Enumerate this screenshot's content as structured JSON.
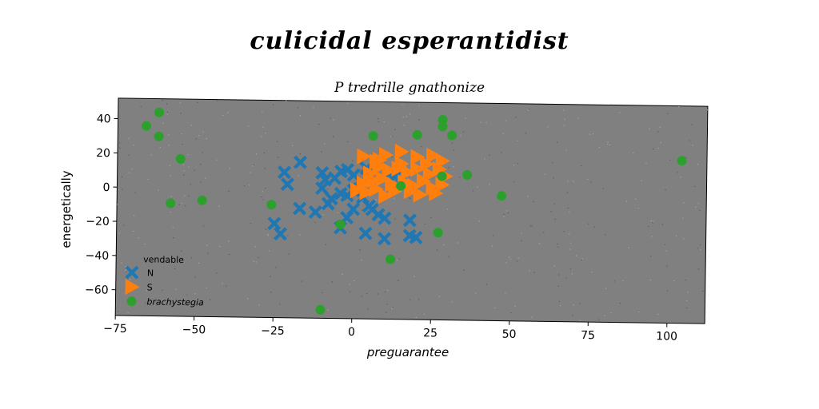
{
  "chart_data": {
    "type": "scatter",
    "title": "culicidal esperantidist",
    "subtitle": "P tredrille gnathonize",
    "xlabel": "preguarantee",
    "ylabel": "energetically",
    "xlim": [
      -75,
      112
    ],
    "ylim": [
      -75,
      52
    ],
    "xticks": [
      -75,
      -50,
      -25,
      0,
      25,
      50,
      75,
      100
    ],
    "yticks": [
      40,
      20,
      0,
      -20,
      -40,
      -60
    ],
    "grid": false,
    "legend": {
      "title": "vendable",
      "placement": "lower-left"
    },
    "background": "#808080",
    "series": [
      {
        "name": "N",
        "marker": "x",
        "color": "#1f77b4",
        "points": [
          [
            -17,
            16
          ],
          [
            -22,
            10
          ],
          [
            -21,
            3
          ],
          [
            -10,
            10
          ],
          [
            -9,
            6
          ],
          [
            -10,
            1
          ],
          [
            -6,
            7
          ],
          [
            -4,
            11
          ],
          [
            -2,
            12
          ],
          [
            0,
            9
          ],
          [
            4,
            13
          ],
          [
            -4,
            -2
          ],
          [
            -8,
            -8
          ],
          [
            -12,
            -13
          ],
          [
            -17,
            -11
          ],
          [
            -7,
            -5
          ],
          [
            -2,
            -3
          ],
          [
            0,
            0
          ],
          [
            2,
            1
          ],
          [
            3,
            -4
          ],
          [
            5,
            -9
          ],
          [
            6,
            -11
          ],
          [
            8,
            -14
          ],
          [
            10,
            -16
          ],
          [
            -2,
            -16
          ],
          [
            0,
            -11
          ],
          [
            -4,
            -22
          ],
          [
            4,
            -25
          ],
          [
            10,
            -28
          ],
          [
            18,
            -17
          ],
          [
            18,
            -26
          ],
          [
            20,
            -27
          ],
          [
            -25,
            -20
          ],
          [
            -23,
            -26
          ],
          [
            11,
            10
          ],
          [
            13,
            8
          ]
        ]
      },
      {
        "name": "S",
        "marker": "triangle-right",
        "color": "#ff7f0e",
        "points": [
          [
            3,
            20
          ],
          [
            7,
            17
          ],
          [
            10,
            21
          ],
          [
            15,
            23
          ],
          [
            20,
            20
          ],
          [
            25,
            21
          ],
          [
            28,
            18
          ],
          [
            5,
            10
          ],
          [
            8,
            14
          ],
          [
            11,
            12
          ],
          [
            14,
            13
          ],
          [
            17,
            11
          ],
          [
            20,
            13
          ],
          [
            24,
            10
          ],
          [
            27,
            13
          ],
          [
            3,
            4
          ],
          [
            6,
            6
          ],
          [
            9,
            7
          ],
          [
            12,
            4
          ],
          [
            16,
            5
          ],
          [
            19,
            3
          ],
          [
            22,
            6
          ],
          [
            25,
            2
          ],
          [
            28,
            4
          ],
          [
            1,
            0
          ],
          [
            4,
            -1
          ],
          [
            7,
            1
          ],
          [
            10,
            -3
          ],
          [
            13,
            0
          ],
          [
            18,
            0
          ],
          [
            21,
            -2
          ],
          [
            26,
            -1
          ],
          [
            8,
            18
          ],
          [
            29,
            9
          ],
          [
            15,
            16
          ],
          [
            23,
            16
          ]
        ]
      },
      {
        "name": "brachystegia",
        "marker": "circle",
        "color": "#2ca02c",
        "points": [
          [
            -62,
            44
          ],
          [
            -66,
            36
          ],
          [
            -62,
            30
          ],
          [
            -55,
            17
          ],
          [
            -58,
            -9
          ],
          [
            -48,
            -7
          ],
          [
            -26,
            -9
          ],
          [
            -10,
            -70
          ],
          [
            -4,
            -20
          ],
          [
            6,
            32
          ],
          [
            12,
            -40
          ],
          [
            15,
            3
          ],
          [
            20,
            33
          ],
          [
            27,
            -24
          ],
          [
            28,
            9
          ],
          [
            28,
            42
          ],
          [
            28,
            38
          ],
          [
            31,
            33
          ],
          [
            36,
            10
          ],
          [
            47,
            -2
          ],
          [
            104,
            20
          ]
        ]
      }
    ]
  }
}
